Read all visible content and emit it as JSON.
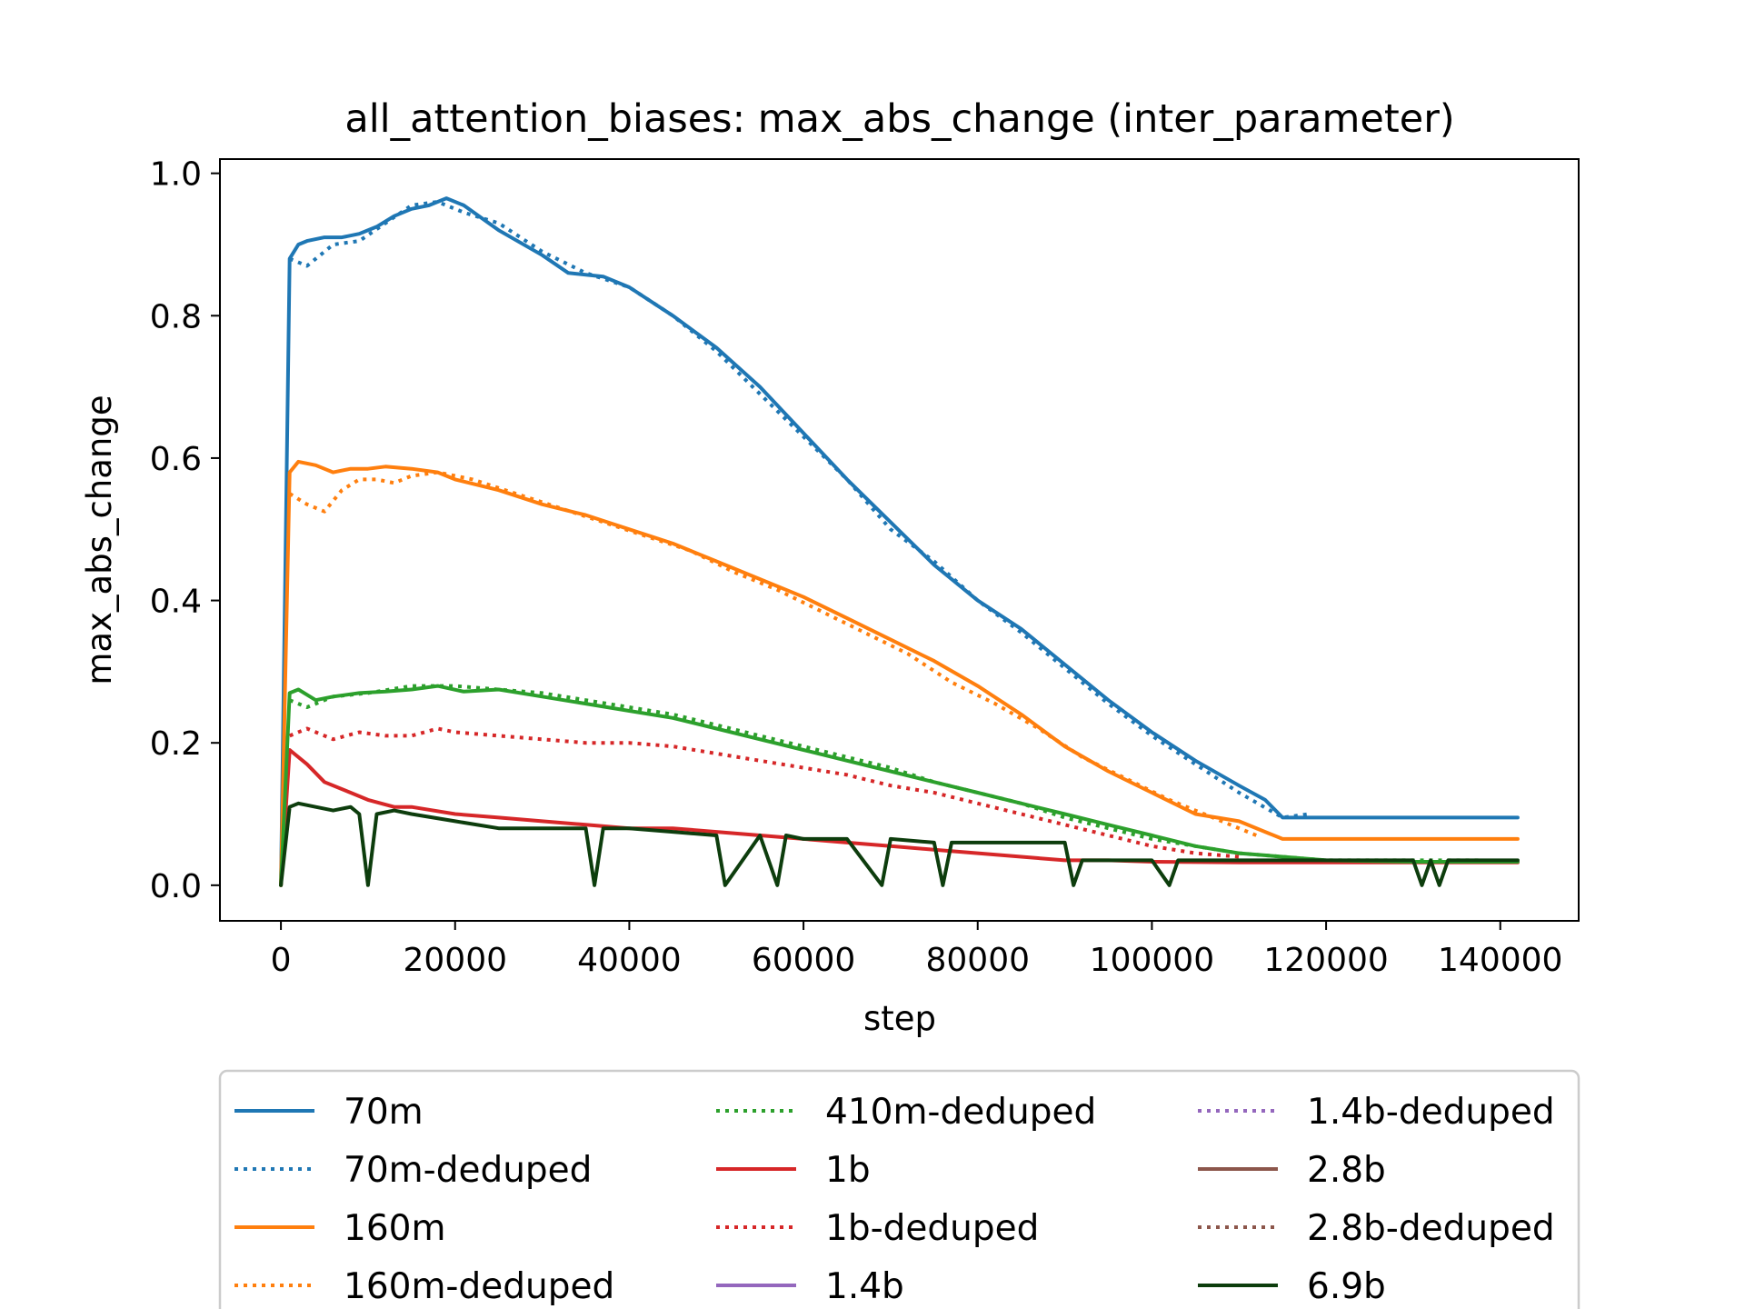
{
  "chart_data": {
    "type": "line",
    "title": "all_attention_biases: max_abs_change (inter_parameter)",
    "xlabel": "step",
    "ylabel": "max_abs_change",
    "xlim": [
      -7000,
      149000
    ],
    "ylim": [
      -0.05,
      1.02
    ],
    "xticks": [
      0,
      20000,
      40000,
      60000,
      80000,
      100000,
      120000,
      140000
    ],
    "yticks": [
      0.0,
      0.2,
      0.4,
      0.6,
      0.8,
      1.0
    ],
    "xtick_labels": [
      "0",
      "20000",
      "40000",
      "60000",
      "80000",
      "100000",
      "120000",
      "140000"
    ],
    "ytick_labels": [
      "0.0",
      "0.2",
      "0.4",
      "0.6",
      "0.8",
      "1.0"
    ],
    "grid": false,
    "legend_placement": "below",
    "series": [
      {
        "name": "70m",
        "color": "#1f77b4",
        "style": "solid",
        "x": [
          0,
          1000,
          2000,
          3000,
          5000,
          7000,
          9000,
          11000,
          13000,
          15000,
          17000,
          19000,
          21000,
          25000,
          30000,
          33000,
          37000,
          40000,
          45000,
          50000,
          55000,
          60000,
          65000,
          70000,
          75000,
          80000,
          85000,
          90000,
          95000,
          100000,
          105000,
          110000,
          113000,
          115000,
          120000,
          130000,
          142000
        ],
        "y": [
          0.0,
          0.88,
          0.9,
          0.905,
          0.91,
          0.91,
          0.915,
          0.925,
          0.94,
          0.95,
          0.955,
          0.965,
          0.955,
          0.92,
          0.885,
          0.86,
          0.855,
          0.84,
          0.8,
          0.755,
          0.7,
          0.635,
          0.57,
          0.51,
          0.45,
          0.4,
          0.36,
          0.31,
          0.26,
          0.215,
          0.175,
          0.14,
          0.12,
          0.095,
          0.095,
          0.095,
          0.095
        ]
      },
      {
        "name": "70m-deduped",
        "color": "#1f77b4",
        "style": "dotted",
        "x": [
          1000,
          3000,
          6000,
          9000,
          12000,
          15000,
          18000,
          21000,
          25000,
          30000,
          35000,
          40000,
          45000,
          50000,
          55000,
          60000,
          65000,
          70000,
          75000,
          80000,
          85000,
          90000,
          95000,
          100000,
          105000,
          110000,
          115000,
          118000
        ],
        "y": [
          0.88,
          0.87,
          0.9,
          0.905,
          0.93,
          0.955,
          0.96,
          0.945,
          0.93,
          0.89,
          0.86,
          0.84,
          0.8,
          0.75,
          0.69,
          0.63,
          0.57,
          0.5,
          0.455,
          0.4,
          0.355,
          0.305,
          0.255,
          0.21,
          0.17,
          0.13,
          0.095,
          0.1
        ]
      },
      {
        "name": "160m",
        "color": "#ff7f0e",
        "style": "solid",
        "x": [
          0,
          1000,
          2000,
          4000,
          6000,
          8000,
          10000,
          12000,
          15000,
          18000,
          20000,
          25000,
          30000,
          35000,
          40000,
          45000,
          50000,
          55000,
          60000,
          65000,
          70000,
          75000,
          80000,
          85000,
          90000,
          95000,
          100000,
          105000,
          110000,
          113000,
          115000,
          120000,
          142000
        ],
        "y": [
          0.0,
          0.58,
          0.595,
          0.59,
          0.58,
          0.585,
          0.585,
          0.588,
          0.585,
          0.58,
          0.57,
          0.555,
          0.535,
          0.52,
          0.5,
          0.48,
          0.455,
          0.43,
          0.405,
          0.375,
          0.345,
          0.315,
          0.28,
          0.24,
          0.195,
          0.16,
          0.13,
          0.1,
          0.09,
          0.075,
          0.065,
          0.065,
          0.065
        ]
      },
      {
        "name": "160m-deduped",
        "color": "#ff7f0e",
        "style": "dotted",
        "x": [
          1000,
          3000,
          5000,
          7000,
          9000,
          11000,
          13000,
          15000,
          18000,
          22000,
          27000,
          32000,
          37000,
          42000,
          47000,
          52000,
          57000,
          62000,
          67000,
          72000,
          77000,
          82000,
          87000,
          92000,
          97000,
          102000,
          107000,
          112000
        ],
        "y": [
          0.55,
          0.535,
          0.525,
          0.555,
          0.57,
          0.57,
          0.565,
          0.575,
          0.58,
          0.57,
          0.55,
          0.53,
          0.51,
          0.49,
          0.47,
          0.44,
          0.415,
          0.385,
          0.355,
          0.325,
          0.285,
          0.255,
          0.22,
          0.18,
          0.15,
          0.12,
          0.095,
          0.07
        ]
      },
      {
        "name": "410m-deduped",
        "color": "#2ca02c",
        "style": "dotted",
        "x": [
          1000,
          3000,
          6000,
          10000,
          15000,
          20000,
          25000,
          30000,
          35000,
          40000,
          45000,
          50000,
          55000,
          60000,
          65000,
          70000,
          75000,
          80000,
          85000,
          90000,
          95000,
          100000,
          105000,
          110000,
          115000,
          120000,
          130000,
          138000
        ],
        "y": [
          0.26,
          0.25,
          0.265,
          0.27,
          0.28,
          0.28,
          0.275,
          0.27,
          0.26,
          0.25,
          0.24,
          0.225,
          0.21,
          0.195,
          0.18,
          0.165,
          0.145,
          0.13,
          0.115,
          0.095,
          0.08,
          0.065,
          0.055,
          0.045,
          0.04,
          0.035,
          0.035,
          0.035
        ]
      },
      {
        "name": "1b",
        "color": "#d62728",
        "style": "solid",
        "x": [
          0,
          1000,
          3000,
          5000,
          8000,
          10000,
          13000,
          15000,
          20000,
          25000,
          30000,
          35000,
          40000,
          45000,
          50000,
          55000,
          60000,
          65000,
          70000,
          75000,
          80000,
          85000,
          90000,
          95000,
          100000,
          110000,
          120000,
          130000,
          142000
        ],
        "y": [
          0.0,
          0.19,
          0.17,
          0.145,
          0.13,
          0.12,
          0.11,
          0.11,
          0.1,
          0.095,
          0.09,
          0.085,
          0.08,
          0.08,
          0.075,
          0.07,
          0.065,
          0.06,
          0.055,
          0.05,
          0.045,
          0.04,
          0.035,
          0.035,
          0.033,
          0.032,
          0.032,
          0.032,
          0.032
        ]
      },
      {
        "name": "1b-deduped",
        "color": "#d62728",
        "style": "dotted",
        "x": [
          1000,
          3000,
          6000,
          9000,
          12000,
          15000,
          18000,
          20000,
          25000,
          30000,
          35000,
          40000,
          45000,
          50000,
          55000,
          60000,
          65000,
          70000,
          75000,
          80000,
          85000,
          90000,
          95000,
          100000,
          105000,
          110000
        ],
        "y": [
          0.21,
          0.22,
          0.205,
          0.215,
          0.21,
          0.21,
          0.22,
          0.215,
          0.21,
          0.205,
          0.2,
          0.2,
          0.195,
          0.185,
          0.175,
          0.165,
          0.155,
          0.14,
          0.13,
          0.115,
          0.1,
          0.085,
          0.07,
          0.055,
          0.045,
          0.04
        ]
      },
      {
        "name": "410m",
        "color": "#2ca02c",
        "style": "solid",
        "x": [
          0,
          1000,
          2000,
          4000,
          6000,
          9000,
          12000,
          15000,
          18000,
          21000,
          25000,
          30000,
          35000,
          40000,
          45000,
          50000,
          55000,
          60000,
          65000,
          70000,
          75000,
          80000,
          85000,
          90000,
          95000,
          100000,
          105000,
          110000,
          115000,
          120000,
          130000,
          142000
        ],
        "y": [
          0.0,
          0.27,
          0.275,
          0.26,
          0.265,
          0.27,
          0.272,
          0.275,
          0.28,
          0.272,
          0.275,
          0.265,
          0.255,
          0.245,
          0.235,
          0.22,
          0.205,
          0.19,
          0.175,
          0.16,
          0.145,
          0.13,
          0.115,
          0.1,
          0.085,
          0.07,
          0.055,
          0.045,
          0.04,
          0.035,
          0.033,
          0.033
        ]
      },
      {
        "name": "1.4b",
        "color": "#9467bd",
        "style": "solid",
        "x": [],
        "y": []
      },
      {
        "name": "1.4b-deduped",
        "color": "#9467bd",
        "style": "dotted",
        "x": [],
        "y": []
      },
      {
        "name": "2.8b",
        "color": "#8c564b",
        "style": "solid",
        "x": [],
        "y": []
      },
      {
        "name": "2.8b-deduped",
        "color": "#8c564b",
        "style": "dotted",
        "x": [],
        "y": []
      },
      {
        "name": "6.9b",
        "color": "#0d3d0d",
        "style": "solid",
        "x": [
          0,
          1000,
          2000,
          4000,
          6000,
          8000,
          9000,
          10000,
          11000,
          13000,
          15000,
          20000,
          25000,
          30000,
          35000,
          36000,
          37000,
          40000,
          45000,
          50000,
          51000,
          55000,
          57000,
          58000,
          60000,
          65000,
          69000,
          70000,
          75000,
          76000,
          77000,
          80000,
          90000,
          91000,
          92000,
          100000,
          102000,
          103000,
          110000,
          120000,
          130000,
          131000,
          132000,
          133000,
          134000,
          142000
        ],
        "y": [
          0.0,
          0.11,
          0.115,
          0.11,
          0.105,
          0.11,
          0.1,
          0.0,
          0.1,
          0.105,
          0.1,
          0.09,
          0.08,
          0.08,
          0.08,
          0.0,
          0.08,
          0.08,
          0.075,
          0.07,
          0.0,
          0.07,
          0.0,
          0.07,
          0.065,
          0.065,
          0.0,
          0.065,
          0.06,
          0.0,
          0.06,
          0.06,
          0.06,
          0.0,
          0.035,
          0.035,
          0.0,
          0.035,
          0.035,
          0.035,
          0.035,
          0.0,
          0.035,
          0.0,
          0.035,
          0.035
        ]
      }
    ],
    "legend": [
      {
        "name": "70m",
        "color": "#1f77b4",
        "style": "solid"
      },
      {
        "name": "70m-deduped",
        "color": "#1f77b4",
        "style": "dotted"
      },
      {
        "name": "160m",
        "color": "#ff7f0e",
        "style": "solid"
      },
      {
        "name": "160m-deduped",
        "color": "#ff7f0e",
        "style": "dotted"
      },
      {
        "name": "410m-deduped",
        "color": "#2ca02c",
        "style": "dotted"
      },
      {
        "name": "1b",
        "color": "#d62728",
        "style": "solid"
      },
      {
        "name": "1b-deduped",
        "color": "#d62728",
        "style": "dotted"
      },
      {
        "name": "1.4b",
        "color": "#9467bd",
        "style": "solid"
      },
      {
        "name": "1.4b-deduped",
        "color": "#9467bd",
        "style": "dotted"
      },
      {
        "name": "2.8b",
        "color": "#8c564b",
        "style": "solid"
      },
      {
        "name": "2.8b-deduped",
        "color": "#8c564b",
        "style": "dotted"
      },
      {
        "name": "6.9b",
        "color": "#0d3d0d",
        "style": "solid"
      }
    ]
  }
}
